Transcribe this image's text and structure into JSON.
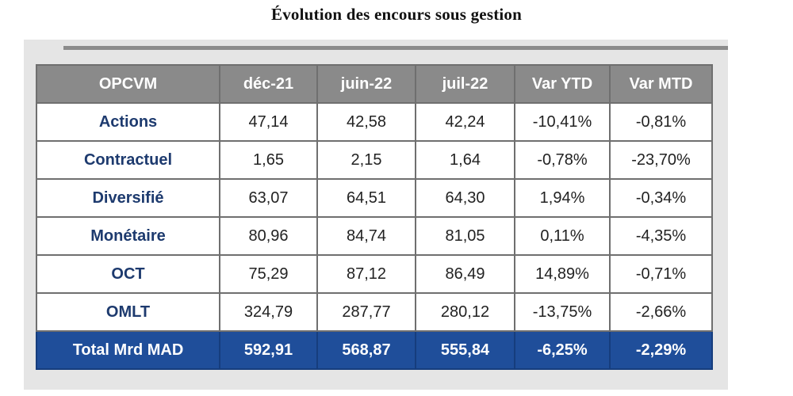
{
  "title": "Évolution des encours sous gestion",
  "table": {
    "headers": [
      "OPCVM",
      "déc-21",
      "juin-22",
      "juil-22",
      "Var YTD",
      "Var MTD"
    ],
    "rows": [
      [
        "Actions",
        "47,14",
        "42,58",
        "42,24",
        "-10,41%",
        "-0,81%"
      ],
      [
        "Contractuel",
        "1,65",
        "2,15",
        "1,64",
        "-0,78%",
        "-23,70%"
      ],
      [
        "Diversifié",
        "63,07",
        "64,51",
        "64,30",
        "1,94%",
        "-0,34%"
      ],
      [
        "Monétaire",
        "80,96",
        "84,74",
        "81,05",
        "0,11%",
        "-4,35%"
      ],
      [
        "OCT",
        "75,29",
        "87,12",
        "86,49",
        "14,89%",
        "-0,71%"
      ],
      [
        "OMLT",
        "324,79",
        "287,77",
        "280,12",
        "-13,75%",
        "-2,66%"
      ]
    ],
    "total": [
      "Total Mrd MAD",
      "592,91",
      "568,87",
      "555,84",
      "-6,25%",
      "-2,29%"
    ]
  },
  "colors": {
    "header_bg": "#8a8a8a",
    "total_bg": "#1f4e9a",
    "label_text": "#1d3a6e"
  }
}
